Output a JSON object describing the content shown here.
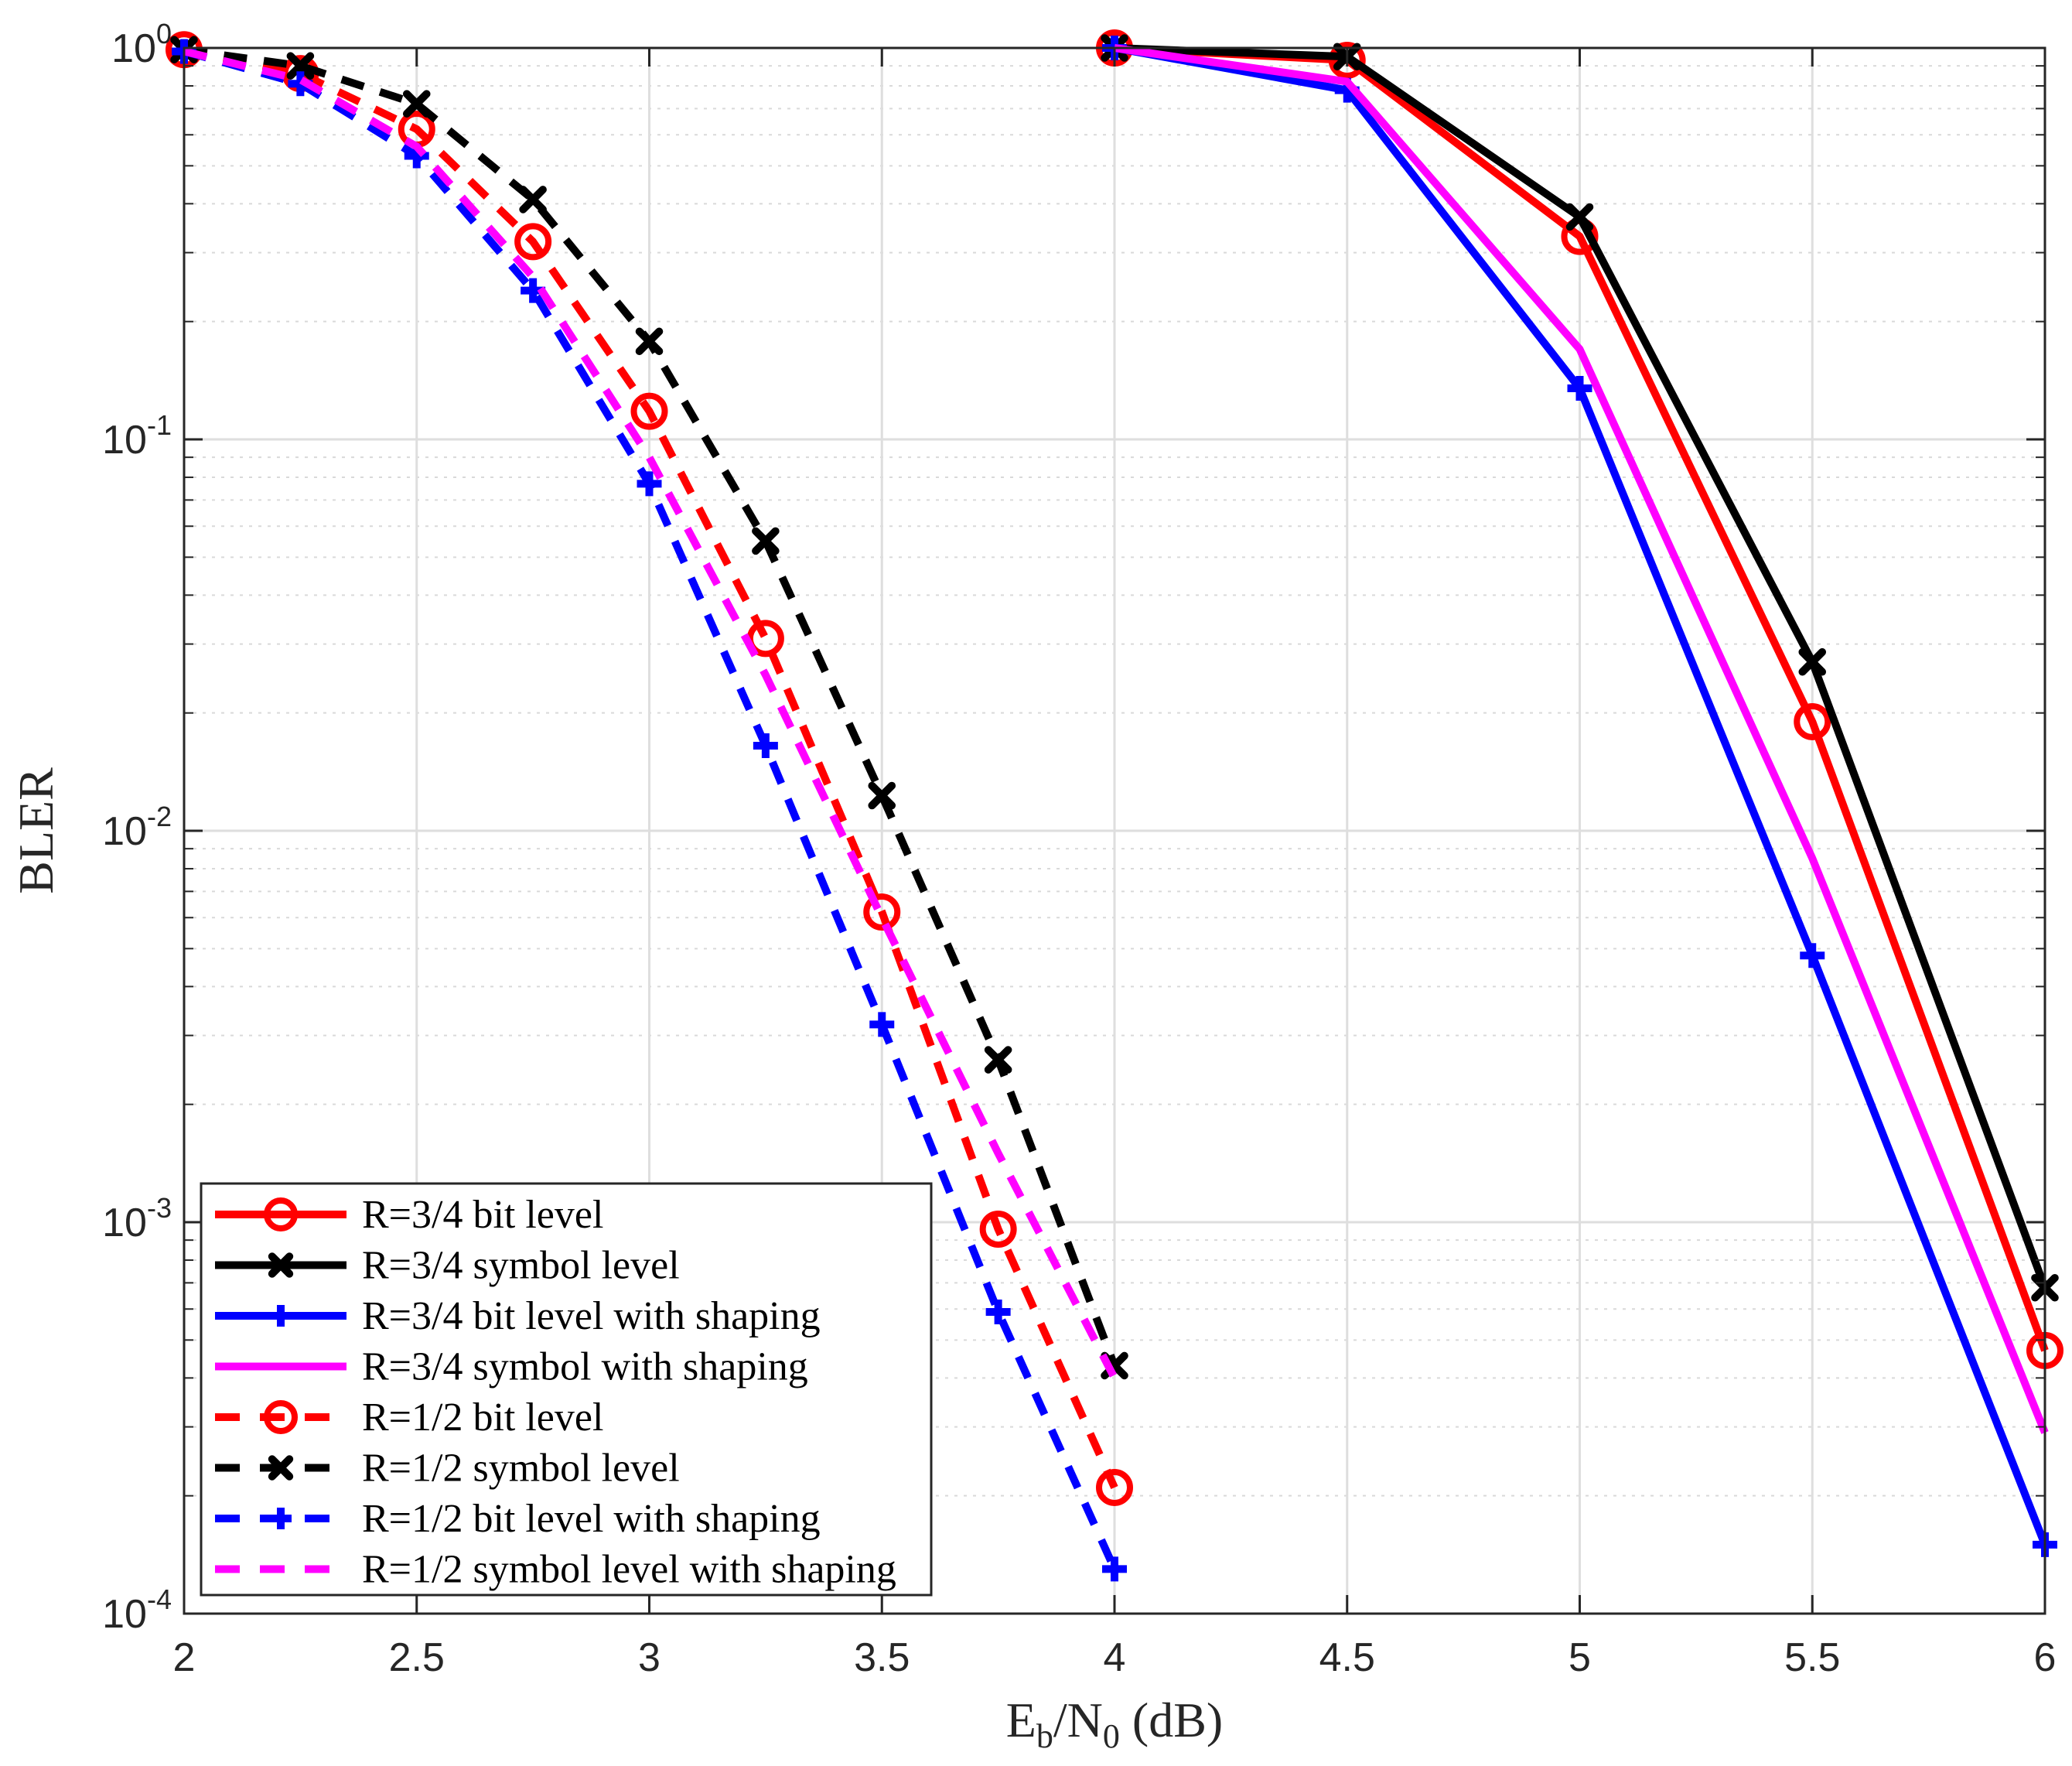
{
  "chart_data": {
    "type": "line",
    "title": "",
    "xlabel": {
      "main": "E",
      "sub1": "b",
      "mid": "/N",
      "sub2": "0",
      "tail": " (dB)"
    },
    "ylabel": "BLER",
    "xlim": [
      2,
      6
    ],
    "ylim": [
      0.0001,
      1
    ],
    "yscale": "log",
    "grid": true,
    "legend_position": "bottom-left",
    "x_ticks": [
      "2",
      "2.5",
      "3",
      "3.5",
      "4",
      "4.5",
      "5",
      "5.5",
      "6"
    ],
    "y_ticks": [
      {
        "base": "10",
        "exp": "0",
        "value": 1
      },
      {
        "base": "10",
        "exp": "-1",
        "value": 0.1
      },
      {
        "base": "10",
        "exp": "-2",
        "value": 0.01
      },
      {
        "base": "10",
        "exp": "-3",
        "value": 0.001
      },
      {
        "base": "10",
        "exp": "-4",
        "value": 0.0001
      }
    ],
    "series": [
      {
        "name": "R=3/4 bit level",
        "color": "#ff0000",
        "dash": "solid",
        "marker": "circle",
        "x": [
          4,
          4.5,
          5,
          5.5,
          6
        ],
        "y": [
          1.0,
          0.93,
          0.33,
          0.019,
          0.00047
        ]
      },
      {
        "name": "R=3/4 symbol level",
        "color": "#000000",
        "dash": "solid",
        "marker": "x",
        "x": [
          4,
          4.5,
          5,
          5.5,
          6
        ],
        "y": [
          1.0,
          0.95,
          0.37,
          0.027,
          0.00068
        ]
      },
      {
        "name": "R=3/4 bit level with shaping",
        "color": "#0000ff",
        "dash": "solid",
        "marker": "plus",
        "x": [
          4,
          4.5,
          5,
          5.5,
          6
        ],
        "y": [
          1.0,
          0.78,
          0.135,
          0.0048,
          0.00015
        ]
      },
      {
        "name": "R=3/4 symbol with shaping",
        "color": "#ff00ff",
        "dash": "solid",
        "marker": "none",
        "x": [
          4,
          4.5,
          5,
          5.5,
          6
        ],
        "y": [
          1.0,
          0.82,
          0.17,
          0.0085,
          0.00029
        ]
      },
      {
        "name": "R=1/2 bit level",
        "color": "#ff0000",
        "dash": "dashed",
        "marker": "circle",
        "x": [
          2,
          2.25,
          2.5,
          2.75,
          3,
          3.25,
          3.5,
          3.75,
          4
        ],
        "y": [
          0.99,
          0.86,
          0.62,
          0.32,
          0.118,
          0.031,
          0.0062,
          0.00096,
          0.00021
        ]
      },
      {
        "name": "R=1/2 symbol level",
        "color": "#000000",
        "dash": "dashed",
        "marker": "x",
        "x": [
          2,
          2.25,
          2.5,
          2.75,
          3,
          3.25,
          3.5,
          3.75,
          4
        ],
        "y": [
          0.99,
          0.9,
          0.72,
          0.41,
          0.178,
          0.055,
          0.0123,
          0.0026,
          0.00043
        ]
      },
      {
        "name": "R=1/2 bit level with shaping",
        "color": "#0000ff",
        "dash": "dashed",
        "marker": "plus",
        "x": [
          2,
          2.25,
          2.5,
          2.75,
          3,
          3.25,
          3.5,
          3.75,
          4
        ],
        "y": [
          0.98,
          0.81,
          0.53,
          0.24,
          0.077,
          0.0165,
          0.0032,
          0.00059,
          0.00013
        ]
      },
      {
        "name": "R=1/2 symbol level with shaping",
        "color": "#ff00ff",
        "dash": "dashed",
        "marker": "none",
        "x": [
          2,
          2.25,
          2.5,
          2.75,
          3,
          3.25,
          3.5,
          3.75,
          4
        ],
        "y": [
          0.98,
          0.83,
          0.56,
          0.26,
          0.09,
          0.025,
          0.006,
          0.0015,
          0.0004
        ]
      }
    ]
  }
}
